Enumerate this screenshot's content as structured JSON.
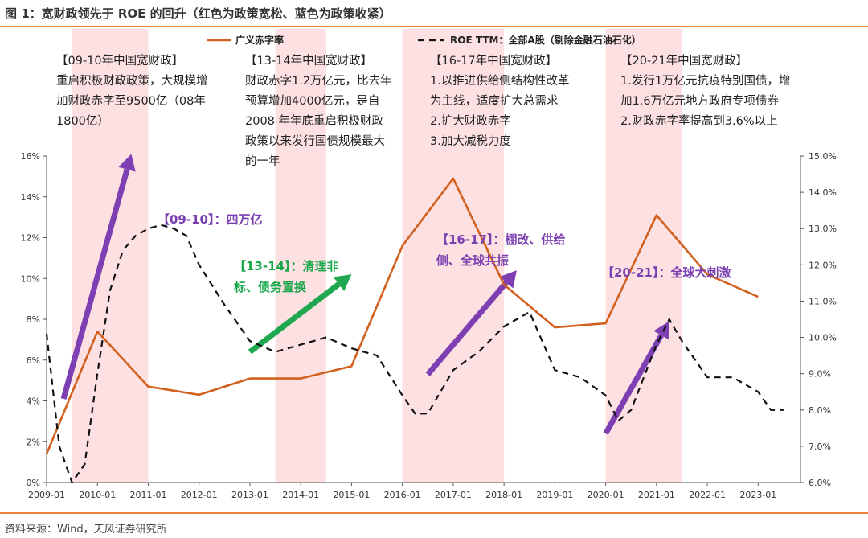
{
  "figure_title": "图 1：宽财政领先于 ROE 的回升（红色为政策宽松、蓝色为政策收紧）",
  "source": "资料来源：Wind，天风证券研究所",
  "chart_data": {
    "type": "line",
    "title": "",
    "x": [
      "2009-01",
      "2009-07",
      "2010-01",
      "2010-07",
      "2011-01",
      "2011-07",
      "2012-01",
      "2012-07",
      "2013-01",
      "2013-07",
      "2014-01",
      "2014-07",
      "2015-01",
      "2015-07",
      "2016-01",
      "2016-07",
      "2017-01",
      "2017-07",
      "2018-01",
      "2018-07",
      "2019-01",
      "2019-07",
      "2020-01",
      "2020-07",
      "2021-01",
      "2021-07",
      "2022-01",
      "2022-07",
      "2023-01",
      "2023-07"
    ],
    "x_tick_labels": [
      "2009-01",
      "2010-01",
      "2011-01",
      "2012-01",
      "2013-01",
      "2014-01",
      "2015-01",
      "2016-01",
      "2017-01",
      "2018-01",
      "2019-01",
      "2020-01",
      "2021-01",
      "2022-01",
      "2023-01"
    ],
    "y_left": {
      "min": 0,
      "max": 16,
      "ticks": [
        "0%",
        "2%",
        "4%",
        "6%",
        "8%",
        "10%",
        "12%",
        "14%",
        "16%"
      ]
    },
    "y_right": {
      "min": 6.0,
      "max": 15.0,
      "ticks": [
        "6.0%",
        "7.0%",
        "8.0%",
        "9.0%",
        "10.0%",
        "11.0%",
        "12.0%",
        "13.0%",
        "14.0%",
        "15.0%"
      ]
    },
    "series": [
      {
        "name": "广义赤字率",
        "axis": "left",
        "style": "solid",
        "color": "#d2601e",
        "points": [
          [
            "2009-01",
            1.4
          ],
          [
            "2010-01",
            7.4
          ],
          [
            "2011-01",
            4.7
          ],
          [
            "2012-01",
            4.3
          ],
          [
            "2013-01",
            5.1
          ],
          [
            "2014-01",
            5.1
          ],
          [
            "2015-01",
            5.7
          ],
          [
            "2016-01",
            11.6
          ],
          [
            "2017-01",
            14.9
          ],
          [
            "2018-01",
            9.7
          ],
          [
            "2019-01",
            7.6
          ],
          [
            "2020-01",
            7.8
          ],
          [
            "2021-01",
            13.1
          ],
          [
            "2022-01",
            10.2
          ],
          [
            "2023-01",
            9.1
          ]
        ]
      },
      {
        "name": "ROE TTM：全部A股（剔除金融石油石化）",
        "axis": "right",
        "style": "dashed",
        "color": "#111111",
        "points": [
          [
            "2009-01",
            10.1
          ],
          [
            "2009-04",
            7.0
          ],
          [
            "2009-07",
            6.0
          ],
          [
            "2009-10",
            6.5
          ],
          [
            "2010-01",
            9.0
          ],
          [
            "2010-04",
            11.3
          ],
          [
            "2010-07",
            12.4
          ],
          [
            "2010-10",
            12.8
          ],
          [
            "2011-01",
            13.0
          ],
          [
            "2011-04",
            13.1
          ],
          [
            "2011-07",
            13.0
          ],
          [
            "2011-10",
            12.8
          ],
          [
            "2012-01",
            12.0
          ],
          [
            "2012-07",
            10.9
          ],
          [
            "2013-01",
            9.9
          ],
          [
            "2013-07",
            9.6
          ],
          [
            "2014-01",
            9.8
          ],
          [
            "2014-07",
            10.0
          ],
          [
            "2015-01",
            9.7
          ],
          [
            "2015-07",
            9.5
          ],
          [
            "2016-01",
            8.4
          ],
          [
            "2016-04",
            7.9
          ],
          [
            "2016-07",
            7.9
          ],
          [
            "2016-10",
            8.5
          ],
          [
            "2017-01",
            9.1
          ],
          [
            "2017-07",
            9.6
          ],
          [
            "2018-01",
            10.3
          ],
          [
            "2018-07",
            10.7
          ],
          [
            "2019-01",
            9.1
          ],
          [
            "2019-07",
            8.9
          ],
          [
            "2020-01",
            8.4
          ],
          [
            "2020-04",
            7.7
          ],
          [
            "2020-07",
            8.0
          ],
          [
            "2020-10",
            8.9
          ],
          [
            "2021-01",
            9.8
          ],
          [
            "2021-04",
            10.5
          ],
          [
            "2021-07",
            9.9
          ],
          [
            "2022-01",
            8.9
          ],
          [
            "2022-07",
            8.9
          ],
          [
            "2023-01",
            8.5
          ],
          [
            "2023-04",
            8.0
          ],
          [
            "2023-07",
            8.0
          ]
        ]
      }
    ],
    "shaded_periods": [
      {
        "start": "2009-07",
        "end": "2011-01",
        "color": "#fde0e1"
      },
      {
        "start": "2013-07",
        "end": "2014-07",
        "color": "#fde0e1"
      },
      {
        "start": "2016-01",
        "end": "2018-01",
        "color": "#fde0e1"
      },
      {
        "start": "2020-01",
        "end": "2021-07",
        "color": "#fde0e1"
      }
    ],
    "arrows": [
      {
        "from": [
          "2009-05",
          4.1
        ],
        "to": [
          "2010-09",
          16.1
        ],
        "color": "#7d3fb2"
      },
      {
        "from": [
          "2013-01",
          6.4
        ],
        "to": [
          "2015-01",
          10.2
        ],
        "color": "#1fa84f"
      },
      {
        "from": [
          "2016-07",
          5.3
        ],
        "to": [
          "2018-04",
          10.4
        ],
        "color": "#7d3fb2"
      },
      {
        "from": [
          "2020-01",
          2.4
        ],
        "to": [
          "2021-04",
          7.9
        ],
        "color": "#7d3fb2"
      }
    ],
    "legend": {
      "position": "top",
      "entries": [
        "广义赤字率",
        "ROE TTM：全部A股（剔除金融石油石化）"
      ]
    },
    "annotations": [
      {
        "id": "note1",
        "lines": [
          "【09-10年中国宽财政】",
          "重启积极财政政策，大规模增",
          "加财政赤字至9500亿（08年",
          "1800亿）"
        ]
      },
      {
        "id": "note2",
        "lines": [
          "【13-14年中国宽财政】",
          "财政赤字1.2万亿元，比去年",
          "预算增加4000亿元，是自",
          "2008 年年底重启积极财政",
          "政策以来发行国债规模最大",
          "的一年"
        ]
      },
      {
        "id": "note3",
        "lines": [
          "【16-17年中国宽财政】",
          "1.以推进供给侧结构性改革",
          "为主线，适度扩大总需求",
          "2.扩大财政赤字",
          "3.加大减税力度"
        ]
      },
      {
        "id": "note4",
        "lines": [
          "【20-21年中国宽财政】",
          "1.发行1万亿元抗疫特别国债，增",
          "加1.6万亿元地方政府专项债券",
          "2.财政赤字率提高到3.6%以上"
        ]
      }
    ],
    "labels": [
      {
        "id": "label1",
        "text": "【09-10】：四万亿",
        "color": "#7a3fb0"
      },
      {
        "id": "label2",
        "lines": [
          "【13-14】：清理非",
          "标、债务置换"
        ],
        "color": "#18a84a"
      },
      {
        "id": "label3",
        "lines": [
          "【16-17】：棚改、供给",
          "侧、全球共振"
        ],
        "color": "#7a3fb0"
      },
      {
        "id": "label4",
        "text": "【20-21】：全球大刺激",
        "color": "#7a3fb0"
      }
    ]
  }
}
